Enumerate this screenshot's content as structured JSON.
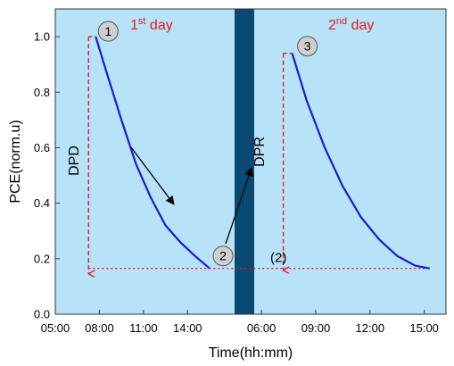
{
  "chart_data": {
    "type": "line",
    "title": "",
    "xlabel": "Time(hh:mm)",
    "ylabel": "PCE(norm.u)",
    "ylim": [
      0,
      1.1
    ],
    "yticks": [
      "0.0",
      "0.2",
      "0.4",
      "0.6",
      "0.8",
      "1.0"
    ],
    "ytick_values": [
      0,
      0.2,
      0.4,
      0.6,
      0.8,
      1.0
    ],
    "xticks": [
      "05:00",
      "08:00",
      "11:00",
      "14:00",
      "06:00",
      "09:00",
      "12:00",
      "15:00"
    ],
    "segments": [
      {
        "label": "1st day",
        "label_base": "1",
        "label_sup": "st",
        "label_rest": " day",
        "xlim": [
          5.0,
          17.2
        ],
        "x_hours": [
          7.75,
          8.5,
          9.5,
          10.5,
          11.5,
          12.5,
          13.5,
          14.5,
          15.5
        ],
        "y": [
          1.0,
          0.87,
          0.7,
          0.54,
          0.42,
          0.32,
          0.26,
          0.21,
          0.165
        ]
      },
      {
        "label": "2nd day",
        "label_base": "2",
        "label_sup": "nd",
        "label_rest": " day",
        "xlim": [
          5.6,
          16.2
        ],
        "x_hours": [
          7.7,
          8.5,
          9.5,
          10.5,
          11.5,
          12.5,
          13.5,
          14.5,
          15.3
        ],
        "y": [
          0.94,
          0.77,
          0.6,
          0.46,
          0.35,
          0.27,
          0.21,
          0.175,
          0.165
        ]
      }
    ],
    "annotations": {
      "dpd": "DPD",
      "dpr": "DPR",
      "point_labels": [
        "1",
        "2",
        "3"
      ],
      "point_2_alt": "(2)",
      "reference_level": 0.165
    },
    "colors": {
      "background": "#b8e2f7",
      "curve": "#1a1adb",
      "night_band": "#0a4a72",
      "annotation": "#e02020",
      "marker_fill": "#cfcfcf"
    },
    "grid": false,
    "legend": "none"
  }
}
